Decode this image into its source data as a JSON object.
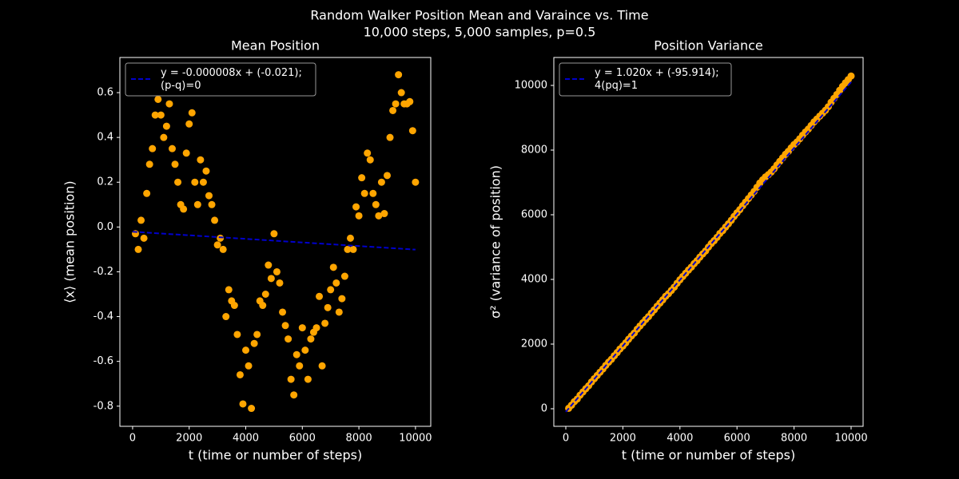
{
  "figure": {
    "title": "Random Walker Position Mean and Varaince vs. Time",
    "subtitle": "10,000 steps, 5,000 samples, p=0.5"
  },
  "chart_data": [
    {
      "type": "scatter",
      "title": "Mean Position",
      "xlabel": "t (time or number of steps)",
      "ylabel": "⟨x⟩ (mean position)",
      "xlim": [
        -450,
        10540
      ],
      "ylim": [
        -0.89,
        0.757
      ],
      "xticks": [
        0,
        2000,
        4000,
        6000,
        8000,
        10000
      ],
      "yticks": [
        -0.8,
        -0.6,
        -0.4,
        -0.2,
        {
          "value": 0,
          "label": "0.0"
        },
        0.2,
        0.4,
        0.6
      ],
      "legend": "upper left",
      "series": [
        {
          "type": "scatter",
          "color": "#ffa500",
          "x": [
            100,
            200,
            300,
            400,
            500,
            600,
            700,
            800,
            900,
            1000,
            1100,
            1200,
            1300,
            1400,
            1500,
            1600,
            1700,
            1800,
            1900,
            2000,
            2100,
            2200,
            2300,
            2400,
            2500,
            2600,
            2700,
            2800,
            2900,
            3000,
            3100,
            3200,
            3300,
            3400,
            3500,
            3600,
            3700,
            3800,
            3900,
            4000,
            4100,
            4200,
            4300,
            4400,
            4500,
            4600,
            4700,
            4800,
            4900,
            5000,
            5100,
            5200,
            5300,
            5400,
            5500,
            5600,
            5700,
            5800,
            5900,
            6000,
            6100,
            6200,
            6300,
            6400,
            6500,
            6600,
            6700,
            6800,
            6900,
            7000,
            7100,
            7200,
            7300,
            7400,
            7500,
            7600,
            7700,
            7800,
            7900,
            8000,
            8100,
            8200,
            8300,
            8400,
            8500,
            8600,
            8700,
            8800,
            8900,
            9000,
            9100,
            9200,
            9300,
            9400,
            9500,
            9600,
            9700,
            9800,
            9900,
            10000
          ],
          "values": [
            -0.03,
            -0.1,
            0.03,
            -0.05,
            0.15,
            0.28,
            0.35,
            0.5,
            0.57,
            0.5,
            0.4,
            0.45,
            0.55,
            0.35,
            0.28,
            0.2,
            0.1,
            0.08,
            0.33,
            0.46,
            0.51,
            0.2,
            0.1,
            0.3,
            0.2,
            0.25,
            0.14,
            0.1,
            0.03,
            -0.08,
            -0.05,
            -0.1,
            -0.4,
            -0.28,
            -0.33,
            -0.35,
            -0.48,
            -0.66,
            -0.79,
            -0.55,
            -0.62,
            -0.81,
            -0.52,
            -0.48,
            -0.33,
            -0.35,
            -0.3,
            -0.17,
            -0.23,
            -0.03,
            -0.2,
            -0.25,
            -0.38,
            -0.44,
            -0.5,
            -0.68,
            -0.75,
            -0.57,
            -0.62,
            -0.45,
            -0.55,
            -0.68,
            -0.5,
            -0.47,
            -0.45,
            -0.31,
            -0.62,
            -0.43,
            -0.36,
            -0.28,
            -0.18,
            -0.25,
            -0.38,
            -0.32,
            -0.22,
            -0.1,
            -0.05,
            -0.1,
            0.09,
            0.05,
            0.22,
            0.15,
            0.33,
            0.3,
            0.15,
            0.1,
            0.05,
            0.2,
            0.06,
            0.23,
            0.4,
            0.52,
            0.55,
            0.68,
            0.6,
            0.55,
            0.55,
            0.56,
            0.43,
            0.2
          ]
        },
        {
          "type": "line",
          "name": "y = -0.000008x + (-0.021);\n(p-q)=0",
          "color": "#0000cc",
          "dashed": true,
          "x": [
            0,
            10000
          ],
          "values": [
            -0.021,
            -0.101
          ]
        }
      ]
    },
    {
      "type": "scatter",
      "title": "Position Variance",
      "xlabel": "t (time or number of steps)",
      "ylabel": "σ² (variance of position)",
      "xlim": [
        -420,
        10420
      ],
      "ylim": [
        -543,
        10864
      ],
      "xticks": [
        0,
        2000,
        4000,
        6000,
        8000,
        10000
      ],
      "yticks": [
        0,
        2000,
        4000,
        6000,
        8000,
        10000
      ],
      "legend": "upper left",
      "series": [
        {
          "type": "scatter",
          "color": "#ffa500",
          "x": [
            100,
            200,
            300,
            400,
            500,
            600,
            700,
            800,
            900,
            1000,
            1100,
            1200,
            1300,
            1400,
            1500,
            1600,
            1700,
            1800,
            1900,
            2000,
            2100,
            2200,
            2300,
            2400,
            2500,
            2600,
            2700,
            2800,
            2900,
            3000,
            3100,
            3200,
            3300,
            3400,
            3500,
            3600,
            3700,
            3800,
            3900,
            4000,
            4100,
            4200,
            4300,
            4400,
            4500,
            4600,
            4700,
            4800,
            4900,
            5000,
            5100,
            5200,
            5300,
            5400,
            5500,
            5600,
            5700,
            5800,
            5900,
            6000,
            6100,
            6200,
            6300,
            6400,
            6500,
            6600,
            6700,
            6800,
            6900,
            7000,
            7100,
            7200,
            7300,
            7400,
            7500,
            7600,
            7700,
            7800,
            7900,
            8000,
            8100,
            8200,
            8300,
            8400,
            8500,
            8600,
            8700,
            8800,
            8900,
            9000,
            9100,
            9200,
            9300,
            9400,
            9500,
            9600,
            9700,
            9800,
            9900,
            10000
          ],
          "values": [
            15,
            110,
            220,
            300,
            420,
            520,
            620,
            710,
            830,
            930,
            1030,
            1130,
            1230,
            1340,
            1440,
            1530,
            1640,
            1740,
            1850,
            1940,
            2040,
            2150,
            2250,
            2340,
            2460,
            2560,
            2660,
            2760,
            2850,
            2960,
            3060,
            3170,
            3270,
            3370,
            3480,
            3560,
            3660,
            3760,
            3880,
            3990,
            4090,
            4190,
            4290,
            4380,
            4490,
            4580,
            4690,
            4790,
            4880,
            5000,
            5110,
            5200,
            5300,
            5420,
            5510,
            5620,
            5720,
            5830,
            5950,
            6060,
            6160,
            6280,
            6390,
            6500,
            6610,
            6720,
            6850,
            6980,
            7080,
            7170,
            7240,
            7320,
            7420,
            7540,
            7650,
            7760,
            7870,
            7960,
            8070,
            8170,
            8250,
            8350,
            8460,
            8560,
            8650,
            8760,
            8870,
            8960,
            9050,
            9140,
            9230,
            9340,
            9480,
            9600,
            9720,
            9850,
            9970,
            10080,
            10180,
            10290
          ]
        },
        {
          "type": "line",
          "name": "y = 1.020x + (-95.914);\n4(pq)=1",
          "color": "#0000cc",
          "dashed": true,
          "x": [
            0,
            10000
          ],
          "values": [
            -95.914,
            10104.086
          ]
        }
      ]
    }
  ]
}
